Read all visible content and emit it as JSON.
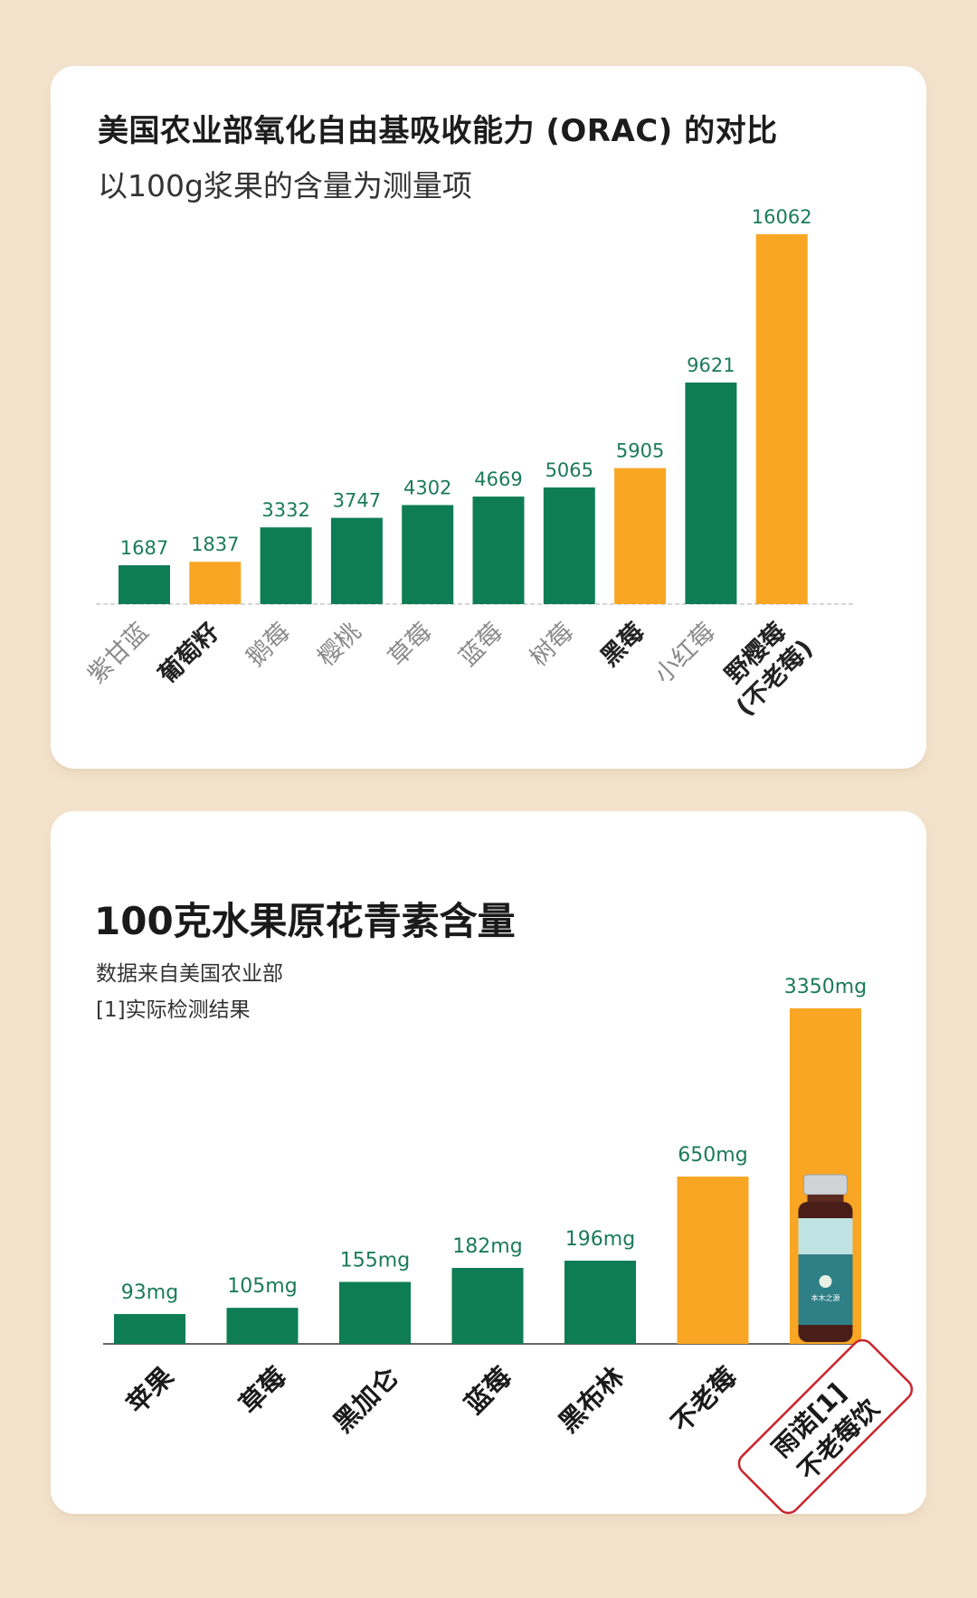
{
  "colors": {
    "background": "#f3e3cd",
    "card": "#ffffff",
    "green": "#0e7d56",
    "orange": "#f8a624",
    "value_text": "#1b7a5a",
    "stamp_red": "#c8242c"
  },
  "chart_data": [
    {
      "type": "bar",
      "title": "美国农业部氧化自由基吸收能力 (ORAC) 的对比",
      "subtitle": "以100g浆果的含量为测量项",
      "categories": [
        "紫甘蓝",
        "葡萄籽",
        "鹅莓",
        "樱桃",
        "草莓",
        "蓝莓",
        "树莓",
        "黑莓",
        "小红莓",
        "野樱莓(不老莓)"
      ],
      "values": [
        1687,
        1837,
        3332,
        3747,
        4302,
        4669,
        5065,
        5905,
        9621,
        16062
      ],
      "value_labels": [
        "1687",
        "1837",
        "3332",
        "3747",
        "4302",
        "4669",
        "5065",
        "5905",
        "9621",
        "16062"
      ],
      "highlighted": [
        false,
        true,
        false,
        false,
        false,
        false,
        false,
        true,
        false,
        true
      ],
      "bold_labels": [
        false,
        true,
        false,
        false,
        false,
        false,
        false,
        true,
        false,
        true
      ],
      "colors": [
        "#0e7d56",
        "#f8a624",
        "#0e7d56",
        "#0e7d56",
        "#0e7d56",
        "#0e7d56",
        "#0e7d56",
        "#f8a624",
        "#0e7d56",
        "#f8a624"
      ],
      "ylim": [
        0,
        16062
      ],
      "grid": false,
      "baseline": "dashed"
    },
    {
      "type": "bar",
      "title": "100克水果原花青素含量",
      "notes": [
        "数据来自美国农业部",
        "[1]实际检测结果"
      ],
      "categories": [
        "苹果",
        "草莓",
        "黑加仑",
        "蓝莓",
        "黑布林",
        "不老莓",
        "雨诺不老莓饮"
      ],
      "category_display": [
        "苹果",
        "草莓",
        "黑加仑",
        "蓝莓",
        "黑布林",
        "不老莓",
        "雨诺[1]",
        "不老莓饮"
      ],
      "values": [
        93,
        105,
        155,
        182,
        196,
        650,
        3350
      ],
      "value_labels": [
        "93mg",
        "105mg",
        "155mg",
        "182mg",
        "196mg",
        "650mg",
        "3350mg"
      ],
      "unit": "mg",
      "colors": [
        "#0e7d56",
        "#0e7d56",
        "#0e7d56",
        "#0e7d56",
        "#0e7d56",
        "#f8a624",
        "#f8a624"
      ],
      "ylim": [
        0,
        3350
      ],
      "grid": false,
      "last_label_boxed": true,
      "product_bottle_on_last_bar": true,
      "bottle_text": "本木之源"
    }
  ]
}
